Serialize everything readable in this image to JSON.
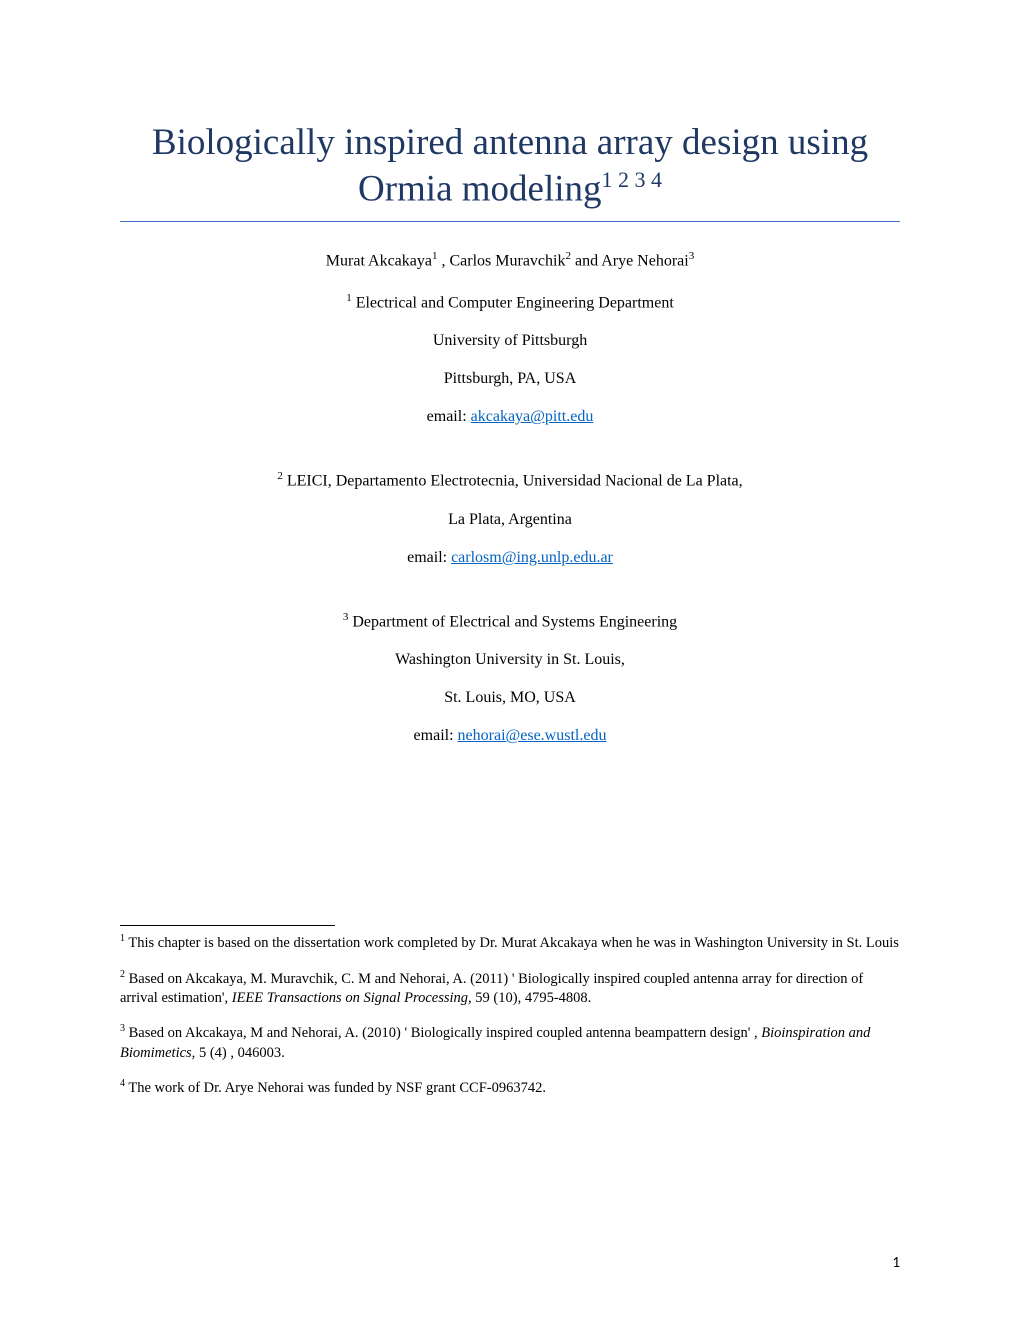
{
  "title": {
    "text_pre": "Biologically inspired antenna array design using Ormia modeling",
    "sup_refs": "1 2 3 4",
    "color": "#1f3864",
    "fontsize": 37,
    "border_color": "#4472c4"
  },
  "authors": {
    "a1_name": "Murat Akcakaya",
    "a1_sup": "1",
    "sep1": " , ",
    "a2_name": "Carlos Muravchik",
    "a2_sup": "2",
    "sep2": "  and ",
    "a3_name": "Arye Nehorai",
    "a3_sup": "3",
    "fontsize": 16
  },
  "affiliations": [
    {
      "sup": "1",
      "lines": [
        " Electrical and Computer Engineering Department",
        "University of Pittsburgh",
        "Pittsburgh, PA, USA"
      ],
      "email_label": "email: ",
      "email": "akcakaya@pitt.edu"
    },
    {
      "sup": "2",
      "lines": [
        " LEICI, Departamento Electrotecnia, Universidad Nacional de La Plata,",
        "La Plata, Argentina"
      ],
      "email_label": "email: ",
      "email": "carlosm@ing.unlp.edu.ar"
    },
    {
      "sup": "3",
      "lines": [
        " Department of Electrical and Systems Engineering",
        "Washington University in St. Louis,",
        "St. Louis, MO, USA"
      ],
      "email_label": "email: ",
      "email": "nehorai@ese.wustl.edu"
    }
  ],
  "footnotes": {
    "fontsize": 14.5,
    "items": [
      {
        "sup": "1",
        "pre": " This chapter is based on the dissertation work completed by Dr. Murat Akcakaya when he was in Washington University in St. Louis",
        "ital": "",
        "post": ""
      },
      {
        "sup": "2",
        "pre": " Based on Akcakaya, M. Muravchik, C. M and Nehorai, A. (2011) ' Biologically inspired coupled antenna array for direction of arrival estimation',  ",
        "ital": "IEEE Transactions on Signal Processing,",
        "post": " 59 (10), 4795-4808."
      },
      {
        "sup": "3",
        "pre": " Based on Akcakaya, M and Nehorai, A. (2010) ' Biologically inspired coupled antenna beampattern design' , ",
        "ital": "Bioinspiration and Biomimetics,",
        "post": " 5 (4) , 046003."
      },
      {
        "sup": "4",
        "pre": " The work of Dr. Arye Nehorai was funded by NSF grant CCF-0963742.",
        "ital": "",
        "post": ""
      }
    ]
  },
  "page_number": "1",
  "colors": {
    "link": "#0563c1",
    "text": "#000000",
    "background": "#ffffff"
  }
}
